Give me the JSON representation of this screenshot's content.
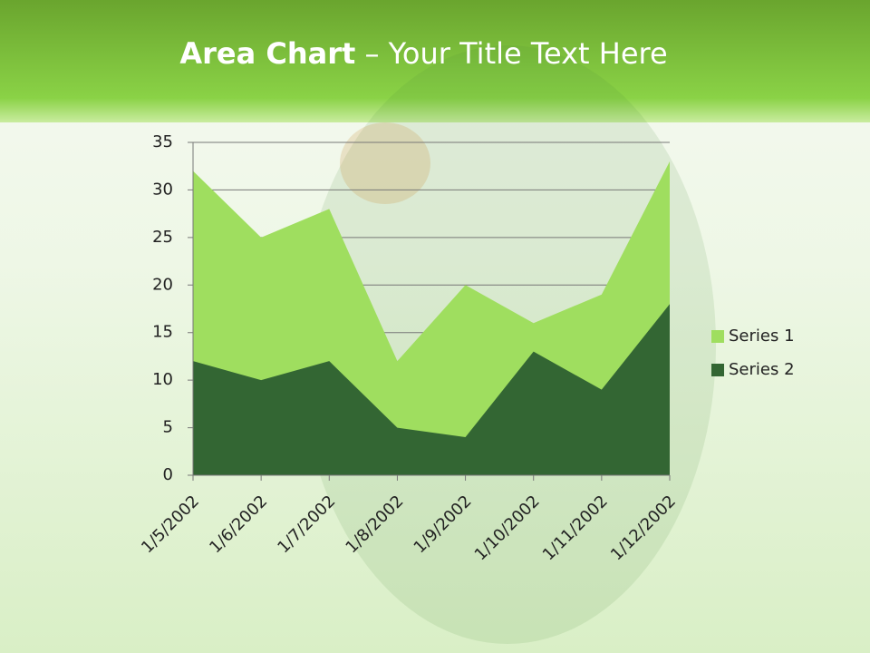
{
  "slide": {
    "title_bold": "Area Chart",
    "title_rest": "– Your Title Text Here"
  },
  "chart_data": {
    "type": "area",
    "categories": [
      "1/5/2002",
      "1/6/2002",
      "1/7/2002",
      "1/8/2002",
      "1/9/2002",
      "1/10/2002",
      "1/11/2002",
      "1/12/2002"
    ],
    "series": [
      {
        "name": "Series 1",
        "color": "#9fde5f",
        "values": [
          32,
          25,
          28,
          12,
          20,
          16,
          19,
          33
        ]
      },
      {
        "name": "Series 2",
        "color": "#336633",
        "values": [
          12,
          10,
          12,
          5,
          4,
          13,
          9,
          18
        ]
      }
    ],
    "ylim": [
      0,
      35
    ],
    "yticks": [
      0,
      5,
      10,
      15,
      20,
      25,
      30,
      35
    ],
    "grid": true,
    "legend": "right"
  }
}
